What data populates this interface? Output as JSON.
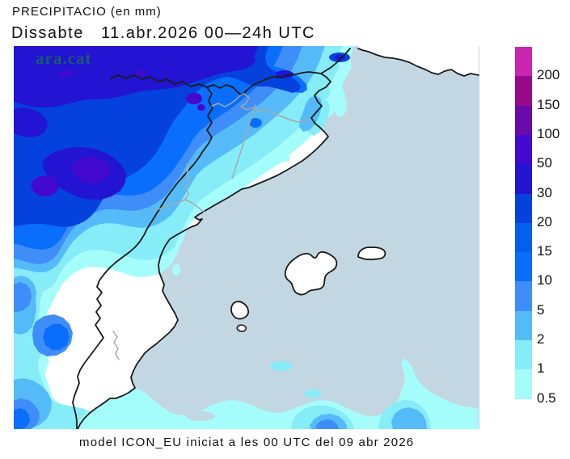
{
  "header": {
    "title": "PRECIPITACIO (en mm)",
    "subtitle": "Dissabte   11.abr.2026 00—24h UTC"
  },
  "footer": {
    "caption": "model ICON_EU iniciat a les 00 UTC del 09 abr 2026"
  },
  "watermark": {
    "text": "ara.cat",
    "color": "#17695c"
  },
  "map": {
    "sea_color": "#c3d7e3",
    "land_color": "#ffffff",
    "coast_color": "#1a1a1a",
    "border_color": "#a8a8a8",
    "precip_colors": {
      "200": "#c926ad",
      "150": "#970b8a",
      "100": "#6a0aa8",
      "50": "#4409cf",
      "30": "#2313d2",
      "20": "#0542dd",
      "15": "#055fee",
      "10": "#0a6efc",
      "5": "#3f8df8",
      "2": "#55bbf8",
      "1": "#86ecf8",
      "0.5": "#a5fdfb"
    }
  },
  "legend": {
    "values": [
      "200",
      "150",
      "100",
      "50",
      "30",
      "20",
      "15",
      "10",
      "5",
      "2",
      "1",
      "0.5"
    ],
    "colors": [
      "#c926ad",
      "#970b8a",
      "#6a0aa8",
      "#4409cf",
      "#2313d2",
      "#0542dd",
      "#055fee",
      "#0a6efc",
      "#3f8df8",
      "#55bbf8",
      "#86ecf8",
      "#a5fdfb"
    ]
  }
}
